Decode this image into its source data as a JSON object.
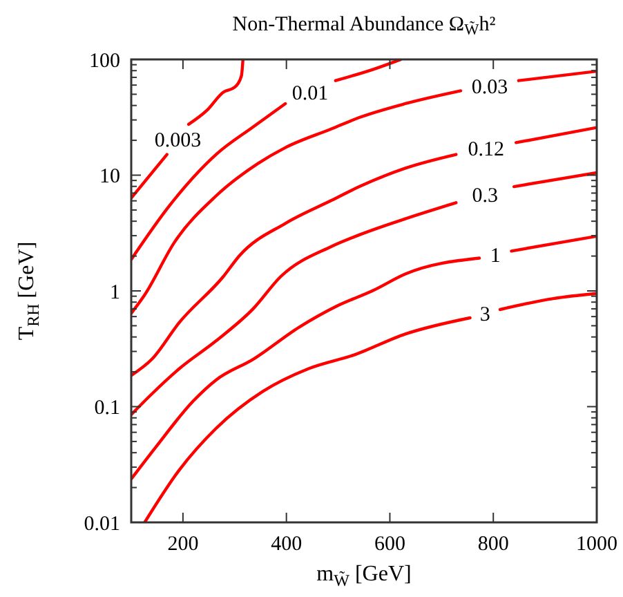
{
  "chart_data": {
    "type": "line",
    "title": "Non-Thermal Abundance Ω$_{W̃}$h²",
    "xlabel": "m$_{W̃}$ [GeV]",
    "ylabel": "T$_{RH}$ [GeV]",
    "xlim": [
      100,
      1000
    ],
    "xticks": [
      200,
      400,
      600,
      800,
      1000
    ],
    "ylim": [
      0.01,
      100
    ],
    "log": true,
    "yticks": [
      {
        "value": 0.01,
        "label": "0.01"
      },
      {
        "value": 0.02,
        "label": null
      },
      {
        "value": 0.03,
        "label": null
      },
      {
        "value": 0.04,
        "label": null
      },
      {
        "value": 0.05,
        "label": null
      },
      {
        "value": 0.06,
        "label": null
      },
      {
        "value": 0.07,
        "label": null
      },
      {
        "value": 0.08,
        "label": null
      },
      {
        "value": 0.09,
        "label": null
      },
      {
        "value": 0.1,
        "label": "0.1"
      },
      {
        "value": 0.2,
        "label": null
      },
      {
        "value": 0.3,
        "label": null
      },
      {
        "value": 0.4,
        "label": null
      },
      {
        "value": 0.5,
        "label": null
      },
      {
        "value": 0.6,
        "label": null
      },
      {
        "value": 0.7,
        "label": null
      },
      {
        "value": 0.8,
        "label": null
      },
      {
        "value": 0.9,
        "label": null
      },
      {
        "value": 1,
        "label": "1"
      },
      {
        "value": 2,
        "label": null
      },
      {
        "value": 3,
        "label": null
      },
      {
        "value": 4,
        "label": null
      },
      {
        "value": 5,
        "label": null
      },
      {
        "value": 6,
        "label": null
      },
      {
        "value": 7,
        "label": null
      },
      {
        "value": 8,
        "label": null
      },
      {
        "value": 9,
        "label": null
      },
      {
        "value": 10,
        "label": "10"
      },
      {
        "value": 20,
        "label": null
      },
      {
        "value": 30,
        "label": null
      },
      {
        "value": 40,
        "label": null
      },
      {
        "value": 50,
        "label": null
      },
      {
        "value": 60,
        "label": null
      },
      {
        "value": 70,
        "label": null
      },
      {
        "value": 80,
        "label": null
      },
      {
        "value": 90,
        "label": null
      },
      {
        "value": 100,
        "label": "100"
      }
    ],
    "grid": false,
    "marker": "none",
    "line_style": "solid",
    "series": [
      {
        "name": "0.003",
        "color": "#ff0000",
        "x": [
          100,
          169,
          190,
          211,
          246,
          278,
          300,
          313,
          316
        ],
        "values": [
          6.34,
          15.1,
          null,
          27.5,
          36.2,
          52.1,
          57.6,
          72,
          100
        ]
      },
      {
        "name": "0.01",
        "color": "#ff0000",
        "x": [
          100,
          175,
          264,
          336,
          398,
          446,
          495,
          569,
          621
        ],
        "values": [
          1.87,
          5.53,
          15.1,
          26.2,
          41.5,
          null,
          65.6,
          82.4,
          100
        ]
      },
      {
        "name": "0.03",
        "color": "#ff0000",
        "x": [
          100,
          126,
          184,
          264,
          345,
          398,
          487,
          541,
          630,
          737,
          793,
          849,
          1000
        ],
        "values": [
          0.641,
          0.925,
          2.65,
          6.62,
          12.6,
          17.3,
          25.1,
          31.5,
          41.5,
          53.6,
          null,
          65.6,
          79
        ]
      },
      {
        "name": "0.12",
        "color": "#ff0000",
        "x": [
          100,
          140,
          193,
          278,
          309,
          398,
          487,
          541,
          630,
          728,
          786,
          844,
          1000
        ],
        "values": [
          0.186,
          0.257,
          0.534,
          1.33,
          2.01,
          3.83,
          6.05,
          7.96,
          11.5,
          15.1,
          null,
          19.1,
          25.8
        ]
      },
      {
        "name": "0.3",
        "color": "#ff0000",
        "x": [
          100,
          140,
          193,
          264,
          336,
          389,
          487,
          541,
          630,
          728,
          784,
          840,
          1000
        ],
        "values": [
          0.0853,
          0.129,
          0.213,
          0.37,
          0.703,
          1.33,
          2.42,
          3.05,
          4.2,
          5.78,
          null,
          7.96,
          10.5
        ]
      },
      {
        "name": "1",
        "color": "#ff0000",
        "x": [
          100,
          148,
          220,
          264,
          336,
          425,
          496,
          568,
          630,
          773,
          804,
          835,
          1000
        ],
        "values": [
          0.0237,
          0.045,
          0.112,
          0.17,
          0.257,
          0.487,
          0.734,
          1.01,
          1.4,
          1.92,
          null,
          2.21,
          2.97
        ]
      },
      {
        "name": "3",
        "color": "#ff0000",
        "x": [
          126,
          193,
          264,
          354,
          443,
          532,
          630,
          755,
          784,
          813,
          916,
          1000
        ],
        "values": [
          0.01,
          0.0284,
          0.0649,
          0.135,
          0.213,
          0.281,
          0.424,
          0.585,
          null,
          0.69,
          0.859,
          0.95
        ]
      }
    ]
  }
}
